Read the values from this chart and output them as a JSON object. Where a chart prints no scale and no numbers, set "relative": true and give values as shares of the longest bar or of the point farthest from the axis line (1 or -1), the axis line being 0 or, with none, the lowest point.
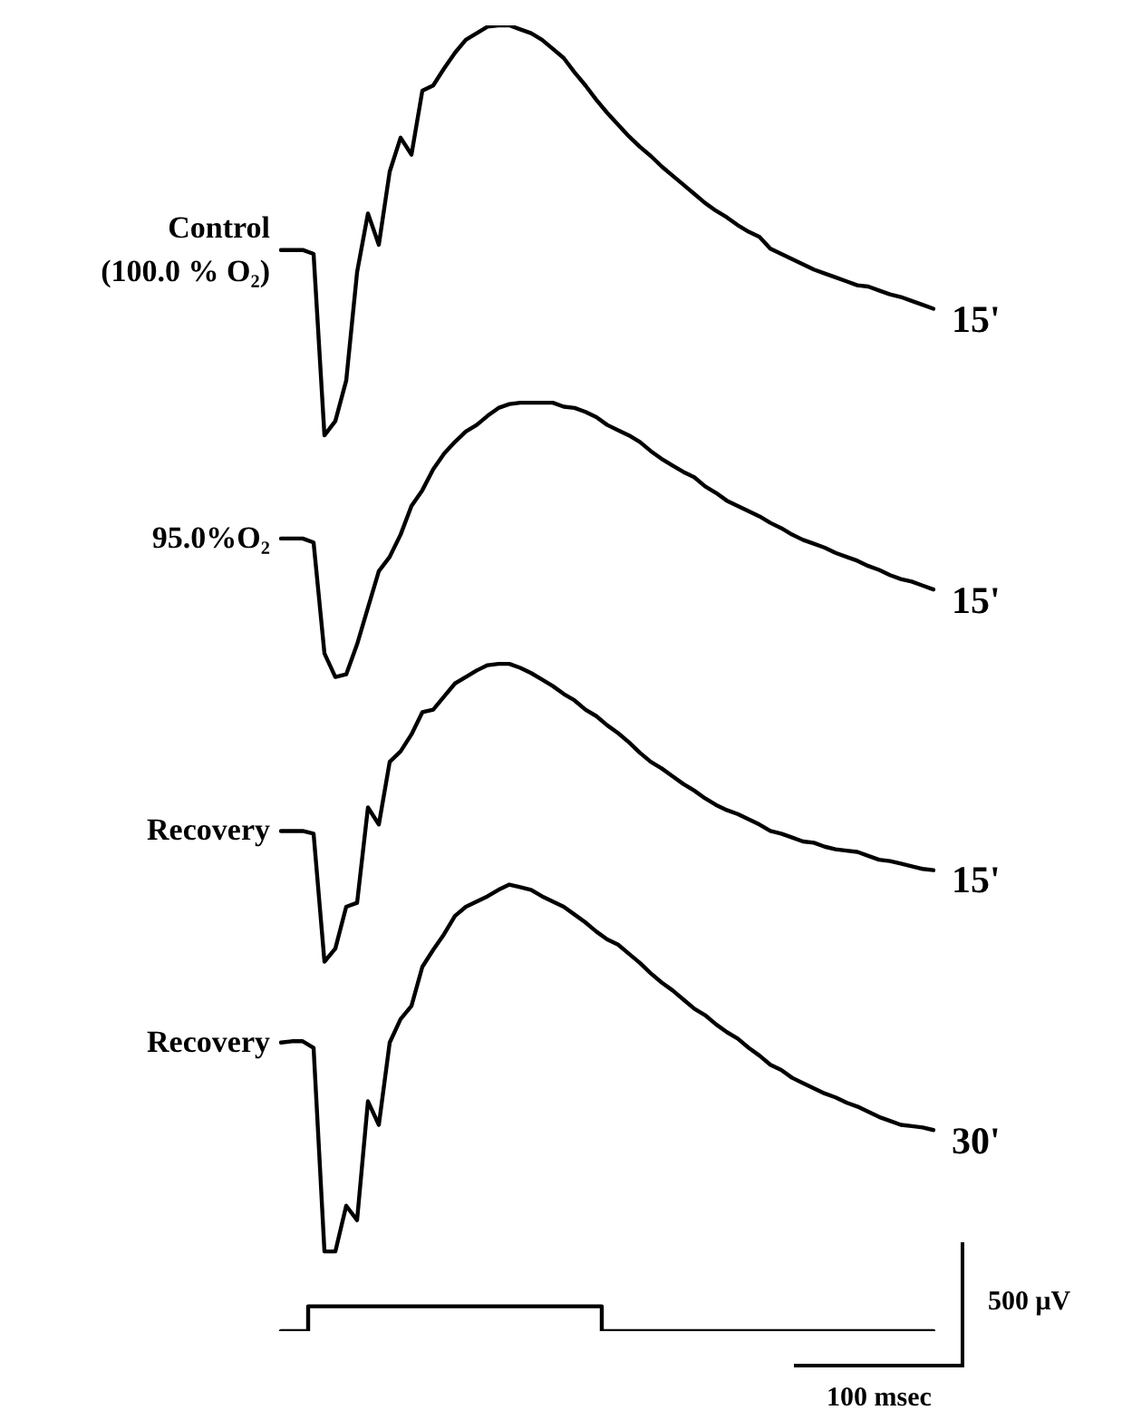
{
  "chart_data": {
    "type": "line",
    "relative": true,
    "legend": false,
    "marker": "none",
    "line_style": "solid",
    "categories": [
      null,
      null,
      null,
      null,
      null,
      null,
      null,
      null,
      null,
      null,
      null,
      null,
      null,
      null,
      null,
      null,
      null,
      null,
      null,
      null,
      null,
      null,
      null,
      null,
      null,
      null,
      null,
      null,
      null,
      null,
      null,
      null,
      null,
      null,
      null,
      null,
      null,
      null,
      null,
      null,
      null,
      null,
      null,
      null,
      null,
      null,
      null,
      null,
      null,
      null,
      null,
      null,
      null,
      null,
      null,
      null,
      null,
      null,
      null,
      null,
      null
    ],
    "series": [
      {
        "name": "Control (100.0 % O₂)",
        "color": "#000000",
        "values": [
          0.828,
          0.828,
          0.828,
          0.825,
          0.686,
          0.697,
          0.728,
          0.811,
          0.856,
          0.832,
          0.888,
          0.914,
          0.901,
          0.95,
          0.954,
          0.967,
          0.979,
          0.989,
          0.994,
          0.999,
          1,
          1,
          0.997,
          0.994,
          0.989,
          0.982,
          0.975,
          0.964,
          0.954,
          0.943,
          0.933,
          0.924,
          0.915,
          0.907,
          0.9,
          0.892,
          0.885,
          0.878,
          0.871,
          0.864,
          0.858,
          0.853,
          0.847,
          0.842,
          0.838,
          0.829,
          0.825,
          0.821,
          0.817,
          0.813,
          0.81,
          0.807,
          0.804,
          0.801,
          0.8,
          0.797,
          0.794,
          0.792,
          0.789,
          0.786,
          0.783
        ]
      },
      {
        "name": "95.0%O₂",
        "color": "#000000",
        "values": [
          0.607,
          0.607,
          0.607,
          0.604,
          0.519,
          0.501,
          0.503,
          0.526,
          0.554,
          0.582,
          0.593,
          0.61,
          0.632,
          0.644,
          0.66,
          0.672,
          0.681,
          0.689,
          0.694,
          0.701,
          0.707,
          0.71,
          0.711,
          0.711,
          0.711,
          0.711,
          0.708,
          0.707,
          0.704,
          0.7,
          0.694,
          0.69,
          0.686,
          0.681,
          0.674,
          0.668,
          0.663,
          0.658,
          0.654,
          0.647,
          0.642,
          0.636,
          0.632,
          0.628,
          0.624,
          0.619,
          0.615,
          0.61,
          0.606,
          0.603,
          0.6,
          0.596,
          0.593,
          0.59,
          0.586,
          0.583,
          0.579,
          0.576,
          0.574,
          0.571,
          0.568
        ]
      },
      {
        "name": "Recovery",
        "color": "#000000",
        "values": [
          0.383,
          0.383,
          0.383,
          0.381,
          0.283,
          0.293,
          0.325,
          0.328,
          0.401,
          0.388,
          0.436,
          0.444,
          0.457,
          0.474,
          0.476,
          0.486,
          0.496,
          0.501,
          0.506,
          0.51,
          0.511,
          0.511,
          0.508,
          0.504,
          0.499,
          0.494,
          0.488,
          0.483,
          0.476,
          0.471,
          0.464,
          0.458,
          0.451,
          0.443,
          0.436,
          0.431,
          0.425,
          0.419,
          0.414,
          0.408,
          0.403,
          0.399,
          0.396,
          0.392,
          0.388,
          0.383,
          0.381,
          0.378,
          0.375,
          0.374,
          0.371,
          0.369,
          0.368,
          0.367,
          0.364,
          0.361,
          0.36,
          0.358,
          0.356,
          0.354,
          0.353
        ]
      },
      {
        "name": "Recovery",
        "color": "#000000",
        "values": [
          0.221,
          0.222,
          0.222,
          0.217,
          0.061,
          0.061,
          0.096,
          0.085,
          0.176,
          0.158,
          0.221,
          0.239,
          0.249,
          0.279,
          0.292,
          0.304,
          0.318,
          0.325,
          0.329,
          0.333,
          0.338,
          0.342,
          0.34,
          0.338,
          0.333,
          0.329,
          0.325,
          0.319,
          0.313,
          0.306,
          0.3,
          0.296,
          0.289,
          0.282,
          0.274,
          0.267,
          0.261,
          0.254,
          0.247,
          0.242,
          0.235,
          0.229,
          0.224,
          0.217,
          0.211,
          0.204,
          0.2,
          0.194,
          0.19,
          0.186,
          0.182,
          0.179,
          0.175,
          0.172,
          0.168,
          0.164,
          0.161,
          0.158,
          0.157,
          0.156,
          0.154
        ]
      },
      {
        "type": "step",
        "color": "#000000",
        "values": [
          0,
          0,
          0,
          0.019,
          0.019,
          0.019,
          0.019,
          0.019,
          0.019,
          0.019,
          0.019,
          0.019,
          0.019,
          0.019,
          0.019,
          0.019,
          0.019,
          0.019,
          0.019,
          0.019,
          0.019,
          0.019,
          0.019,
          0.019,
          0.019,
          0.019,
          0.019,
          0.019,
          0.019,
          0.019,
          0,
          0,
          0,
          0,
          0,
          0,
          0,
          0,
          0,
          0,
          0,
          0,
          0,
          0,
          0,
          0,
          0,
          0,
          0,
          0,
          0,
          0,
          0,
          0,
          0,
          0,
          0,
          0,
          0,
          0,
          0
        ]
      }
    ],
    "annotations": [
      "15'",
      "15'",
      "15'",
      "30'",
      "500 μV",
      "100 msec"
    ]
  }
}
